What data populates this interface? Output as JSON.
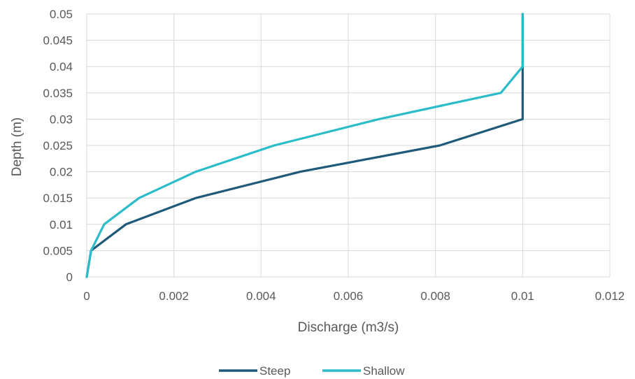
{
  "chart_data": {
    "type": "line",
    "xlabel": "Discharge (m3/s)",
    "ylabel": "Depth (m)",
    "xlim": [
      0,
      0.012
    ],
    "ylim": [
      0,
      0.05
    ],
    "x_ticks": [
      "0",
      "0.002",
      "0.004",
      "0.006",
      "0.008",
      "0.01",
      "0.012"
    ],
    "y_ticks": [
      "0",
      "0.005",
      "0.01",
      "0.015",
      "0.02",
      "0.025",
      "0.03",
      "0.035",
      "0.04",
      "0.045",
      "0.05"
    ],
    "grid": true,
    "legend_position": "bottom",
    "series": [
      {
        "name": "Steep",
        "color": "#1f5a7a",
        "x": [
          0,
          0.0001,
          0.0009,
          0.0025,
          0.0049,
          0.0081,
          0.01,
          0.01
        ],
        "y": [
          0,
          0.005,
          0.01,
          0.015,
          0.02,
          0.025,
          0.03,
          0.05
        ]
      },
      {
        "name": "Shallow",
        "color": "#2bbcc9",
        "x": [
          0,
          0.0001,
          0.0004,
          0.0012,
          0.0025,
          0.0043,
          0.0067,
          0.0095,
          0.01,
          0.01
        ],
        "y": [
          0,
          0.005,
          0.01,
          0.015,
          0.02,
          0.025,
          0.03,
          0.035,
          0.04,
          0.05
        ]
      }
    ]
  }
}
